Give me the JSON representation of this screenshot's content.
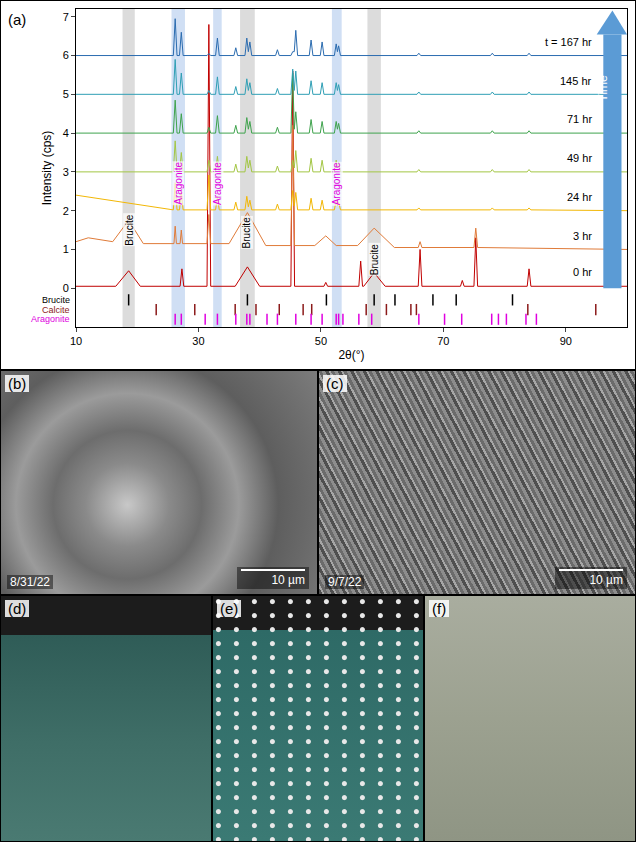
{
  "chart_data": {
    "type": "line",
    "panel_label": "(a)",
    "xlabel": "2θ(°)",
    "ylabel": "Intensity (cps)",
    "arrow_label": "Time",
    "xlim": [
      10,
      100
    ],
    "xticks": [
      10,
      30,
      50,
      70,
      90
    ],
    "ylim": [
      -1.0,
      7.2
    ],
    "yticks": [
      0,
      1,
      2,
      3,
      4,
      5,
      6,
      7
    ],
    "grid": false,
    "series": [
      {
        "name": "0 hr",
        "color": "#c00000",
        "x": [
          10,
          16.5,
          18.6,
          20.5,
          27,
          27.3,
          27.6,
          31.4,
          31.7,
          32.0,
          36,
          38,
          40,
          45.1,
          45.4,
          45.7,
          50.5,
          50.8,
          51.1,
          56.2,
          56.5,
          56.8,
          57,
          58.7,
          60.5,
          65.9,
          66.2,
          66.5,
          72.8,
          73.1,
          73.4,
          75.0,
          75.3,
          75.6,
          83.7,
          84.0,
          84.3,
          100
        ],
        "values": [
          0.05,
          0.05,
          0.45,
          0.05,
          0.05,
          0.5,
          0.05,
          0.05,
          6.8,
          0.05,
          0.05,
          0.55,
          0.05,
          0.05,
          5.6,
          0.05,
          0.05,
          0.15,
          0.05,
          0.05,
          0.7,
          0.05,
          0.05,
          0.4,
          0.05,
          0.05,
          1.0,
          0.05,
          0.05,
          0.2,
          0.05,
          0.05,
          1.3,
          0.05,
          0.05,
          0.5,
          0.05,
          0.05
        ]
      },
      {
        "name": "3 hr",
        "color": "#e07b39",
        "x": [
          10,
          12,
          16,
          18.6,
          21,
          26,
          26.2,
          26.4,
          27,
          27.2,
          27.4,
          31.4,
          31.7,
          32.0,
          35,
          38,
          41,
          45.1,
          45.4,
          45.7,
          49,
          50.8,
          52.5,
          56,
          58.7,
          62,
          65.9,
          66.2,
          66.5,
          75.0,
          75.3,
          75.6,
          100
        ],
        "values": [
          1.2,
          1.3,
          1.2,
          1.75,
          1.15,
          1.15,
          1.6,
          1.15,
          1.15,
          1.5,
          1.15,
          1.15,
          1.9,
          1.15,
          1.15,
          1.95,
          1.1,
          1.1,
          4.2,
          1.1,
          1.1,
          1.35,
          1.1,
          1.1,
          1.55,
          1.05,
          1.05,
          1.2,
          1.05,
          1.05,
          1.55,
          1.05,
          1.0
        ]
      },
      {
        "name": "24 hr",
        "color": "#f2b705",
        "x": [
          10,
          25.9,
          26.2,
          26.5,
          26.9,
          27.2,
          27.5,
          31.4,
          31.7,
          32.0,
          32.8,
          33.1,
          33.4,
          35.8,
          36.1,
          36.4,
          37.6,
          37.9,
          38.15,
          38.4,
          38.7,
          42.6,
          42.9,
          43.2,
          45.1,
          45.4,
          45.65,
          45.9,
          46.2,
          48.1,
          48.4,
          48.7,
          49.9,
          50.2,
          50.5,
          52.2,
          52.5,
          52.7,
          52.9,
          53.2,
          65.7,
          66.0,
          66.3,
          77.7,
          78.0,
          78.3,
          83.7,
          84.0,
          84.3,
          100
        ],
        "values": [
          2.4,
          2.02,
          2.72,
          2.02,
          2.02,
          2.47,
          2.02,
          2.02,
          2.92,
          2.02,
          2.02,
          2.37,
          2.02,
          2.02,
          2.22,
          2.02,
          2.02,
          2.37,
          2.1,
          2.27,
          2.02,
          2.02,
          2.17,
          2.02,
          2.02,
          2.52,
          2.12,
          2.47,
          2.02,
          2.02,
          2.32,
          2.02,
          2.02,
          2.27,
          2.02,
          2.02,
          2.27,
          2.12,
          2.22,
          2.02,
          2.02,
          2.07,
          2.02,
          2.02,
          2.07,
          2.02,
          2.02,
          2.07,
          2.02,
          2.0
        ]
      },
      {
        "name": "49 hr",
        "color": "#a3c644",
        "x": [
          10,
          25.9,
          26.2,
          26.5,
          26.9,
          27.2,
          27.5,
          31.4,
          31.7,
          32.0,
          32.8,
          33.1,
          33.4,
          35.8,
          36.1,
          36.4,
          37.6,
          37.9,
          38.15,
          38.4,
          38.7,
          42.6,
          42.9,
          43.2,
          45.1,
          45.4,
          45.65,
          45.9,
          46.2,
          48.1,
          48.4,
          48.7,
          49.9,
          50.2,
          50.5,
          52.2,
          52.5,
          52.7,
          52.9,
          53.2,
          65.7,
          66.0,
          66.3,
          77.7,
          78.0,
          78.3,
          83.7,
          84.0,
          84.3,
          100
        ],
        "values": [
          3.0,
          3.0,
          3.8,
          3.0,
          3.0,
          3.5,
          3.0,
          3.0,
          3.3,
          3.0,
          3.0,
          3.4,
          3.0,
          3.0,
          3.2,
          3.0,
          3.0,
          3.4,
          3.1,
          3.3,
          3.0,
          3.0,
          3.15,
          3.0,
          3.0,
          3.3,
          3.1,
          3.55,
          3.0,
          3.0,
          3.35,
          3.0,
          3.0,
          3.3,
          3.0,
          3.0,
          3.3,
          3.1,
          3.25,
          3.0,
          3.0,
          3.06,
          3.0,
          3.0,
          3.06,
          3.0,
          3.0,
          3.06,
          3.0,
          3.0
        ]
      },
      {
        "name": "71 hr",
        "color": "#3fa34d",
        "x": [
          10,
          25.9,
          26.2,
          26.5,
          26.9,
          27.2,
          27.5,
          31.4,
          31.7,
          32.0,
          32.8,
          33.1,
          33.4,
          35.8,
          36.1,
          36.4,
          37.6,
          37.9,
          38.15,
          38.4,
          38.7,
          42.6,
          42.9,
          43.2,
          45.1,
          45.4,
          45.65,
          45.9,
          46.2,
          48.1,
          48.4,
          48.7,
          49.9,
          50.2,
          50.5,
          52.2,
          52.5,
          52.7,
          52.9,
          53.2,
          65.7,
          66.0,
          66.3,
          77.7,
          78.0,
          78.3,
          83.7,
          84.0,
          84.3,
          100
        ],
        "values": [
          4.0,
          4.0,
          4.85,
          4.0,
          4.0,
          4.5,
          4.0,
          4.0,
          4.15,
          4.0,
          4.0,
          4.45,
          4.0,
          4.0,
          4.2,
          4.0,
          4.0,
          4.4,
          4.1,
          4.3,
          4.0,
          4.0,
          4.15,
          4.0,
          4.0,
          5.55,
          4.1,
          4.55,
          4.0,
          4.0,
          4.35,
          4.0,
          4.0,
          4.3,
          4.0,
          4.0,
          4.3,
          4.1,
          4.25,
          4.0,
          4.0,
          4.06,
          4.0,
          4.0,
          4.06,
          4.0,
          4.0,
          4.06,
          4.0,
          4.0
        ]
      },
      {
        "name": "145 hr",
        "color": "#2f9fb5",
        "x": [
          10,
          25.9,
          26.2,
          26.5,
          26.9,
          27.2,
          27.5,
          31.4,
          31.7,
          32.0,
          32.8,
          33.1,
          33.4,
          35.8,
          36.1,
          36.4,
          37.6,
          37.9,
          38.15,
          38.4,
          38.7,
          42.6,
          42.9,
          43.2,
          45.1,
          45.4,
          45.65,
          45.9,
          46.2,
          48.1,
          48.4,
          48.7,
          49.9,
          50.2,
          50.5,
          52.2,
          52.5,
          52.7,
          52.9,
          53.2,
          65.7,
          66.0,
          66.3,
          77.7,
          78.0,
          78.3,
          83.7,
          84.0,
          84.3,
          100
        ],
        "values": [
          5.0,
          5.0,
          5.9,
          5.0,
          5.0,
          5.55,
          5.0,
          5.0,
          5.1,
          5.0,
          5.0,
          5.45,
          5.0,
          5.0,
          5.2,
          5.0,
          5.0,
          5.4,
          5.1,
          5.3,
          5.0,
          5.0,
          5.15,
          5.0,
          5.0,
          5.65,
          5.1,
          5.6,
          5.0,
          5.0,
          5.35,
          5.0,
          5.0,
          5.3,
          5.0,
          5.0,
          5.3,
          5.1,
          5.25,
          5.0,
          5.0,
          5.06,
          5.0,
          5.0,
          5.06,
          5.0,
          5.0,
          5.06,
          5.0,
          5.0
        ]
      },
      {
        "name": "t = 167 hr",
        "color": "#2b6cb0",
        "x": [
          10,
          25.9,
          26.2,
          26.5,
          26.9,
          27.2,
          27.5,
          31.4,
          31.7,
          32.0,
          32.8,
          33.1,
          33.4,
          35.8,
          36.1,
          36.4,
          37.6,
          37.9,
          38.15,
          38.4,
          38.7,
          42.6,
          42.9,
          43.2,
          45.1,
          45.4,
          45.65,
          45.9,
          46.2,
          48.1,
          48.4,
          48.7,
          49.9,
          50.2,
          50.5,
          52.2,
          52.5,
          52.7,
          52.9,
          53.2,
          65.7,
          66.0,
          66.3,
          77.7,
          78.0,
          78.3,
          83.7,
          84.0,
          84.3,
          100
        ],
        "values": [
          6.0,
          6.0,
          6.95,
          6.0,
          6.0,
          6.6,
          6.0,
          6.0,
          6.05,
          6.0,
          6.0,
          6.45,
          6.0,
          6.0,
          6.2,
          6.0,
          6.0,
          6.45,
          6.1,
          6.35,
          6.0,
          6.0,
          6.15,
          6.0,
          6.0,
          6.1,
          6.1,
          6.65,
          6.0,
          6.0,
          6.4,
          6.0,
          6.0,
          6.35,
          6.0,
          6.0,
          6.3,
          6.1,
          6.25,
          6.0,
          6.0,
          6.06,
          6.0,
          6.0,
          6.06,
          6.0,
          6.0,
          6.06,
          6.0,
          6.0
        ]
      }
    ],
    "reference_patterns": [
      {
        "name": "Brucite",
        "color": "#000000",
        "marker": "line-ns",
        "x": [
          18.6,
          38.0,
          50.9,
          58.7,
          62.1,
          68.3,
          72.1,
          81.3
        ],
        "values": [
          -0.3,
          -0.3,
          -0.3,
          -0.3,
          -0.3,
          -0.3,
          -0.3,
          -0.3
        ]
      },
      {
        "name": "Calcite",
        "color": "#8b1a1a",
        "marker": "line-ns",
        "x": [
          23.1,
          29.4,
          36.0,
          39.4,
          43.2,
          47.1,
          48.5,
          57.4,
          60.7,
          64.7,
          65.6,
          83.8,
          94.9
        ],
        "values": [
          -0.55,
          -0.55,
          -0.55,
          -0.55,
          -0.55,
          -0.55,
          -0.55,
          -0.55,
          -0.55,
          -0.55,
          -0.55,
          -0.55,
          -0.55
        ]
      },
      {
        "name": "Aragonite",
        "color": "#e000e0",
        "marker": "line-ns",
        "x": [
          26.2,
          27.2,
          31.1,
          33.1,
          36.1,
          37.9,
          38.4,
          41.2,
          42.9,
          45.9,
          48.4,
          50.2,
          52.5,
          52.9,
          53.6,
          56.2,
          58.3,
          66.0,
          70.2,
          73.0,
          77.9,
          79.0,
          80.3,
          83.5,
          85.2
        ],
        "values": [
          -0.8,
          -0.8,
          -0.8,
          -0.8,
          -0.8,
          -0.8,
          -0.8,
          -0.8,
          -0.8,
          -0.8,
          -0.8,
          -0.8,
          -0.8,
          -0.8,
          -0.8,
          -0.8,
          -0.8,
          -0.8,
          -0.8,
          -0.8,
          -0.8,
          -0.8,
          -0.8,
          -0.8,
          -0.8
        ]
      }
    ],
    "bands": [
      {
        "x0": 17.6,
        "x1": 19.6,
        "color": "#bfbfbf",
        "label": "Brucite"
      },
      {
        "x0": 25.6,
        "x1": 27.8,
        "color": "#a9c4eb",
        "label": "Aragonite"
      },
      {
        "x0": 32.4,
        "x1": 33.8,
        "color": "#a9c4eb",
        "label": "Aragonite"
      },
      {
        "x0": 36.8,
        "x1": 39.2,
        "color": "#bfbfbf",
        "label": "Brucite"
      },
      {
        "x0": 51.8,
        "x1": 53.4,
        "color": "#a9c4eb",
        "label": "Aragonite"
      },
      {
        "x0": 57.6,
        "x1": 59.8,
        "color": "#bfbfbf",
        "label": "Brucite"
      }
    ]
  },
  "image_panels": [
    {
      "label": "(b)",
      "date": "8/31/22",
      "scale_bar": "10 µm"
    },
    {
      "label": "(c)",
      "date": "9/7/22",
      "scale_bar": "10 µm"
    },
    {
      "label": "(d)"
    },
    {
      "label": "(e)"
    },
    {
      "label": "(f)"
    }
  ]
}
